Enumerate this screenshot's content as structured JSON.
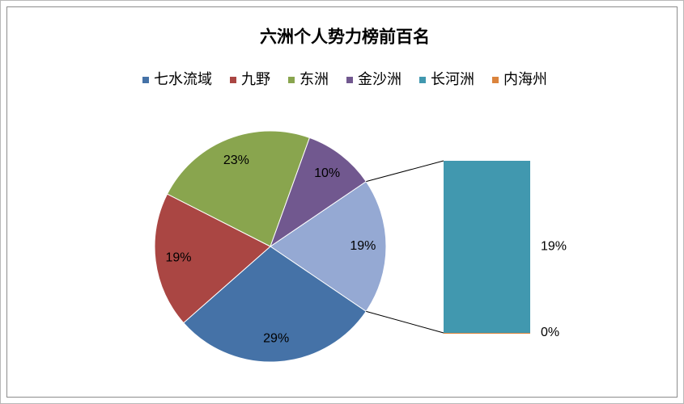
{
  "chart_data": {
    "type": "pie-of-bar",
    "title": "六洲个人势力榜前百名",
    "categories": [
      "七水流域",
      "九野",
      "东洲",
      "金沙洲",
      "长河洲",
      "内海州"
    ],
    "values": [
      29,
      19,
      23,
      10,
      19,
      0
    ],
    "value_labels": [
      "29%",
      "19%",
      "23%",
      "10%",
      "19%",
      "0%"
    ],
    "colors": [
      "#4572a7",
      "#aa4643",
      "#89a54e",
      "#71588f",
      "#4198af",
      "#db843d"
    ],
    "split_last": 2,
    "other_slice": {
      "value": 19,
      "label": "19%",
      "color": "#95a9d3"
    },
    "legend": "top"
  }
}
